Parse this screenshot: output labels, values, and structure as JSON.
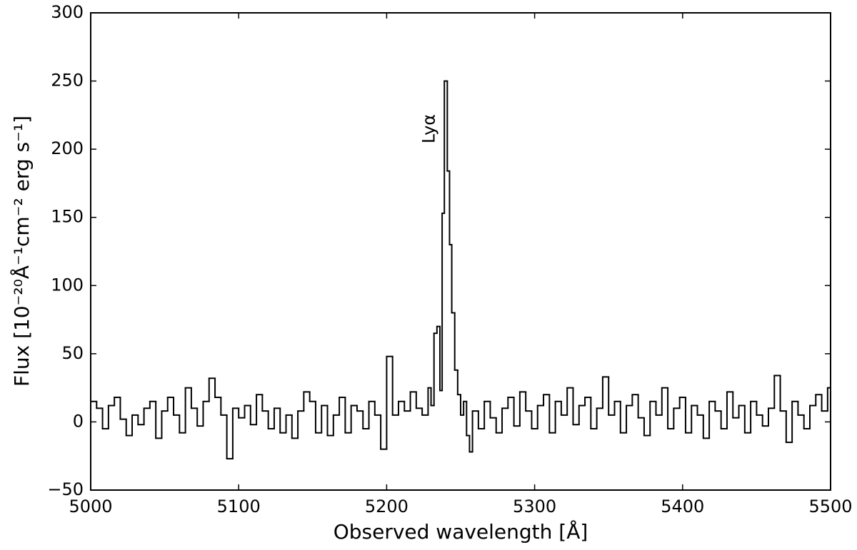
{
  "chart_data": {
    "type": "step",
    "xlabel": "Observed wavelength [Å]",
    "ylabel": "Flux [10⁻²⁰Å⁻¹cm⁻² erg s⁻¹]",
    "annotation": {
      "text": "Lyα",
      "x": 5229,
      "y": 215
    },
    "xlim": [
      5000,
      5500
    ],
    "ylim": [
      -50,
      300
    ],
    "xticks": [
      5000,
      5100,
      5200,
      5300,
      5400,
      5500
    ],
    "yticks": [
      {
        "value": -50,
        "label": "−50"
      },
      0,
      50,
      100,
      150,
      200,
      250,
      300
    ],
    "color": "#000000",
    "x": [
      5000,
      5004,
      5008,
      5012,
      5016,
      5020,
      5024,
      5028,
      5032,
      5036,
      5040,
      5044,
      5048,
      5052,
      5056,
      5060,
      5064,
      5068,
      5072,
      5076,
      5080,
      5084,
      5088,
      5092,
      5096,
      5100,
      5104,
      5108,
      5112,
      5116,
      5120,
      5124,
      5128,
      5132,
      5136,
      5140,
      5144,
      5148,
      5152,
      5156,
      5160,
      5164,
      5168,
      5172,
      5176,
      5180,
      5184,
      5188,
      5192,
      5196,
      5200,
      5204,
      5208,
      5212,
      5216,
      5220,
      5224,
      5228,
      5230,
      5232,
      5234,
      5236,
      5237.5,
      5239,
      5241,
      5242.5,
      5244,
      5246,
      5248,
      5250,
      5252,
      5254,
      5256,
      5258,
      5262,
      5266,
      5270,
      5274,
      5278,
      5282,
      5286,
      5290,
      5294,
      5298,
      5302,
      5306,
      5310,
      5314,
      5318,
      5322,
      5326,
      5330,
      5334,
      5338,
      5342,
      5346,
      5350,
      5354,
      5358,
      5362,
      5366,
      5370,
      5374,
      5378,
      5382,
      5386,
      5390,
      5394,
      5398,
      5402,
      5406,
      5410,
      5414,
      5418,
      5422,
      5426,
      5430,
      5434,
      5438,
      5442,
      5446,
      5450,
      5454,
      5458,
      5462,
      5466,
      5470,
      5474,
      5478,
      5482,
      5486,
      5490,
      5494,
      5498
    ],
    "values": [
      15,
      10,
      -5,
      12,
      18,
      2,
      -10,
      5,
      -2,
      10,
      15,
      -12,
      8,
      18,
      5,
      -8,
      25,
      10,
      -3,
      15,
      32,
      18,
      5,
      -27,
      10,
      3,
      12,
      -2,
      20,
      8,
      -5,
      10,
      -8,
      5,
      -12,
      8,
      22,
      15,
      -8,
      12,
      -10,
      5,
      18,
      -8,
      12,
      8,
      -5,
      15,
      5,
      -20,
      48,
      5,
      15,
      8,
      22,
      10,
      5,
      25,
      12,
      65,
      70,
      23,
      153,
      250,
      184,
      130,
      80,
      38,
      20,
      5,
      15,
      -10,
      -22,
      8,
      -5,
      15,
      3,
      -8,
      10,
      18,
      -3,
      22,
      8,
      -5,
      12,
      20,
      -8,
      15,
      5,
      25,
      -2,
      12,
      18,
      -5,
      10,
      33,
      5,
      15,
      -8,
      12,
      20,
      3,
      -10,
      15,
      5,
      25,
      -5,
      10,
      18,
      -8,
      12,
      5,
      -12,
      15,
      8,
      -5,
      22,
      3,
      12,
      -8,
      15,
      5,
      -3,
      10,
      34,
      8,
      -15,
      15,
      5,
      -5,
      12,
      20,
      8,
      25
    ]
  }
}
